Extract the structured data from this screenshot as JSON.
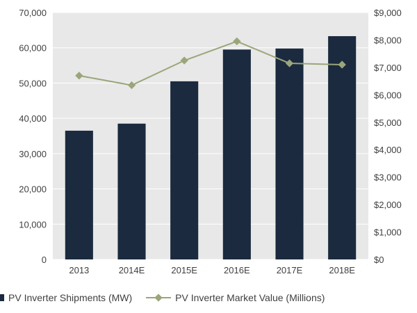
{
  "colors": {
    "bar": "#1b2a3e",
    "line": "#9aa67a",
    "plot_bg": "#e8e8e8",
    "gridline": "#ffffff",
    "text": "#404040"
  },
  "chart_data": {
    "type": "bar",
    "title": "",
    "xlabel": "",
    "ylabel": "",
    "categories": [
      "2013",
      "2014E",
      "2015E",
      "2016E",
      "2017E",
      "2018E"
    ],
    "series": [
      {
        "name": "PV Inverter Shipments (MW)",
        "type": "bar",
        "axis": "left",
        "values": [
          36500,
          38500,
          50500,
          59500,
          59800,
          63300
        ]
      },
      {
        "name": "PV Inverter Market Value (Millions)",
        "type": "line",
        "axis": "right",
        "values": [
          6700,
          6350,
          7250,
          7950,
          7150,
          7100
        ]
      }
    ],
    "ylim": [
      0,
      70000
    ],
    "y2lim": [
      0,
      9000
    ],
    "yticks": [
      "0",
      "10,000",
      "20,000",
      "30,000",
      "40,000",
      "50,000",
      "60,000",
      "70,000"
    ],
    "y2ticks": [
      "$0",
      "$1,000",
      "$2,000",
      "$3,000",
      "$4,000",
      "$5,000",
      "$6,000",
      "$7,000",
      "$8,000",
      "$9,000"
    ],
    "grid": true,
    "legend_position": "bottom"
  },
  "legend": {
    "bar_label": "PV Inverter Shipments (MW)",
    "line_label": "PV Inverter Market Value (Millions)"
  }
}
